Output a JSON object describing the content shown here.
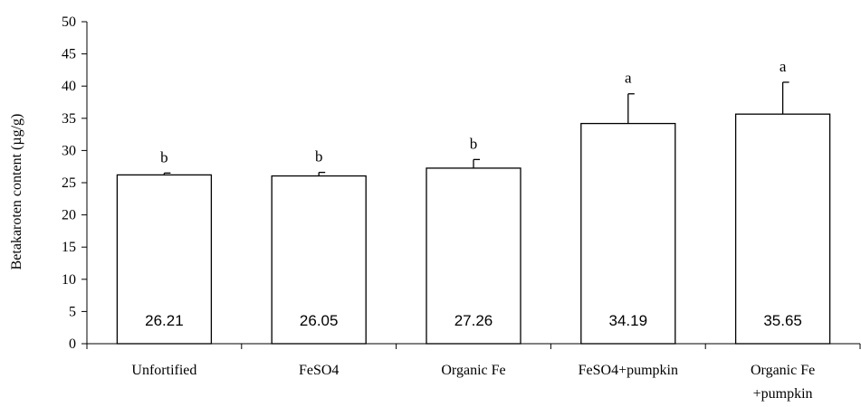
{
  "chart_data": {
    "type": "bar",
    "ylabel": "Betakaroten content (µg/g)",
    "xlabel": "",
    "ylim": [
      0,
      50
    ],
    "yticks": [
      0,
      5,
      10,
      15,
      20,
      25,
      30,
      35,
      40,
      45,
      50
    ],
    "categories": [
      [
        "Unfortified"
      ],
      [
        "FeSO4"
      ],
      [
        "Organic Fe"
      ],
      [
        "FeSO4+pumpkin"
      ],
      [
        "Organic Fe",
        "+pumpkin"
      ]
    ],
    "values": [
      26.21,
      26.05,
      27.26,
      34.19,
      35.65
    ],
    "value_labels": [
      "26.21",
      "26.05",
      "27.26",
      "34.19",
      "35.65"
    ],
    "error_upper": [
      26.5,
      26.6,
      28.6,
      38.8,
      40.6
    ],
    "significance": [
      "b",
      "b",
      "b",
      "a",
      "a"
    ],
    "colors": {
      "bar_fill": "#ffffff",
      "stroke": "#000000"
    }
  }
}
